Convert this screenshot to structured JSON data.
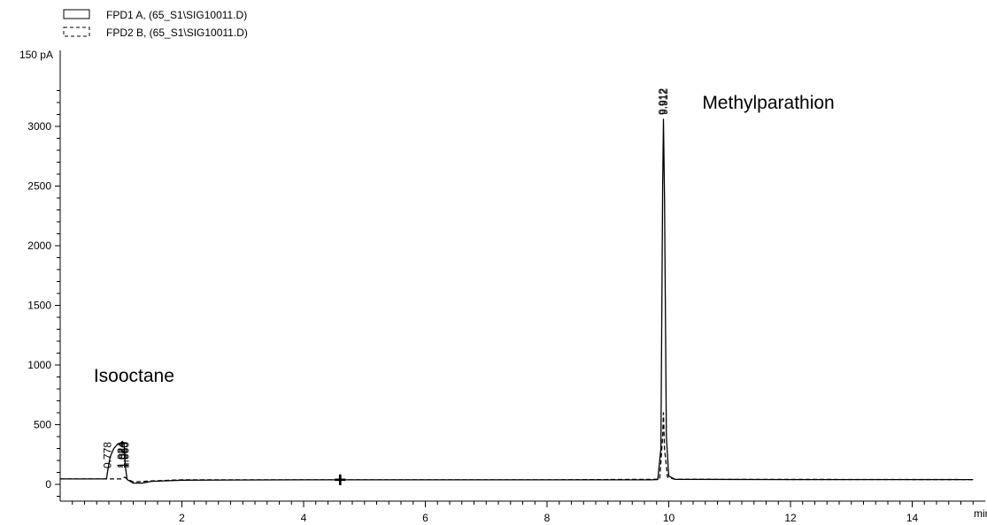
{
  "chart_data": {
    "type": "line",
    "title": "",
    "xlabel": "min",
    "ylabel": "",
    "y_unit": "pA",
    "xlim": [
      0,
      15
    ],
    "ylim": [
      -70,
      3400
    ],
    "x_ticks": [
      2,
      4,
      6,
      8,
      10,
      12,
      14
    ],
    "y_ticks": [
      0,
      500,
      1000,
      1500,
      2000,
      2500,
      3000
    ],
    "y_tick_labels": [
      "0",
      "500",
      "1000",
      "1500",
      "2000",
      "2500",
      "3000"
    ],
    "y_top_label": "150 pA",
    "legend": {
      "placement": "top-left",
      "entries": [
        {
          "label": "FPD1 A,  (65_S1\\SIG10011.D)",
          "style": "solid"
        },
        {
          "label": "FPD2 B,  (65_S1\\SIG10011.D)",
          "style": "dashed"
        }
      ]
    },
    "series": [
      {
        "name": "FPD1 A,  (65_S1\\SIG10011.D)",
        "style": "solid",
        "x": [
          0.0,
          0.5,
          0.76,
          0.78,
          0.82,
          0.88,
          0.95,
          1.0,
          1.024,
          1.05,
          1.07,
          1.1,
          1.2,
          1.35,
          1.5,
          2.0,
          4.0,
          6.0,
          8.0,
          9.7,
          9.82,
          9.87,
          9.9,
          9.912,
          9.93,
          9.96,
          10.0,
          10.1,
          12.0,
          15.0
        ],
        "y": [
          45,
          45,
          45,
          110,
          230,
          300,
          340,
          350,
          360,
          330,
          150,
          40,
          10,
          10,
          25,
          35,
          38,
          38,
          38,
          38,
          40,
          300,
          2500,
          3060,
          2400,
          400,
          70,
          42,
          40,
          40
        ]
      },
      {
        "name": "FPD2 B,  (65_S1\\SIG10011.D)",
        "style": "dashed",
        "x": [
          0.0,
          1.0,
          1.06,
          1.1,
          1.2,
          1.5,
          2.0,
          8.0,
          9.85,
          9.9,
          9.912,
          9.93,
          9.98,
          10.1,
          15.0
        ],
        "y": [
          45,
          45,
          60,
          45,
          20,
          28,
          38,
          38,
          42,
          400,
          600,
          300,
          60,
          42,
          40
        ]
      }
    ],
    "peak_labels": [
      {
        "text": "0.778",
        "x": 0.778
      },
      {
        "text": "1.024",
        "x": 1.006
      },
      {
        "text": "1.024",
        "x": 1.024
      },
      {
        "text": "1.060",
        "x": 1.05
      },
      {
        "text": "1.060",
        "x": 1.066
      },
      {
        "text": "9.912",
        "x": 9.895
      },
      {
        "text": "9.912",
        "x": 9.918
      }
    ],
    "annotations": [
      {
        "text": "Isooctane",
        "x": 0.55,
        "y": 860
      },
      {
        "text": "Methylparathion",
        "x": 10.55,
        "y": 3150
      }
    ],
    "cursor_marker": {
      "symbol": "+",
      "x": 4.6,
      "y": 38
    }
  }
}
